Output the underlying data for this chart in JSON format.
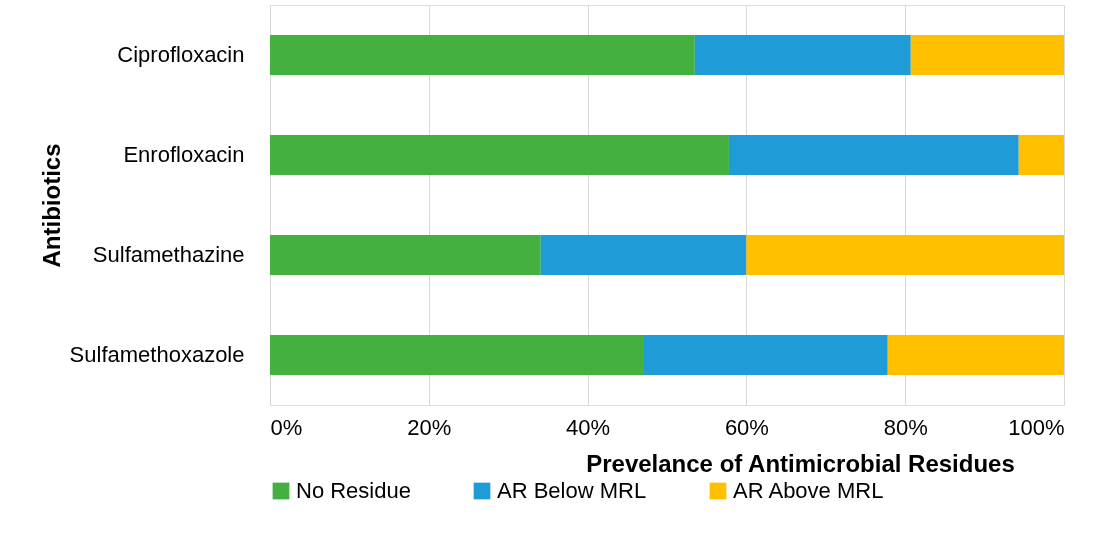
{
  "chart_data": {
    "type": "bar",
    "orientation": "horizontal",
    "stacked": true,
    "xlabel": "Prevelance of Antimicrobial Residues",
    "ylabel": "Antibiotics",
    "categories": [
      "Ciprofloxacin",
      "Enrofloxacin",
      "Sulfamethazine",
      "Sulfamethoxazole"
    ],
    "series": [
      {
        "name": "No Residue",
        "color": "#43b040",
        "values": [
          53.5,
          57.8,
          34.1,
          47.1
        ]
      },
      {
        "name": "AR Below MRL",
        "color": "#1f9cd8",
        "values": [
          27.2,
          36.5,
          25.9,
          30.7
        ]
      },
      {
        "name": "AR Above MRL",
        "color": "#ffc000",
        "values": [
          19.3,
          5.7,
          40.0,
          22.2
        ]
      }
    ],
    "xlim": [
      0,
      100
    ],
    "xticks": [
      {
        "value": 0,
        "label": "0%"
      },
      {
        "value": 20,
        "label": "20%"
      },
      {
        "value": 40,
        "label": "40%"
      },
      {
        "value": 60,
        "label": "60%"
      },
      {
        "value": 80,
        "label": "80%"
      },
      {
        "value": 100,
        "label": "100%"
      }
    ],
    "grid": "x",
    "legend": "bottom"
  }
}
